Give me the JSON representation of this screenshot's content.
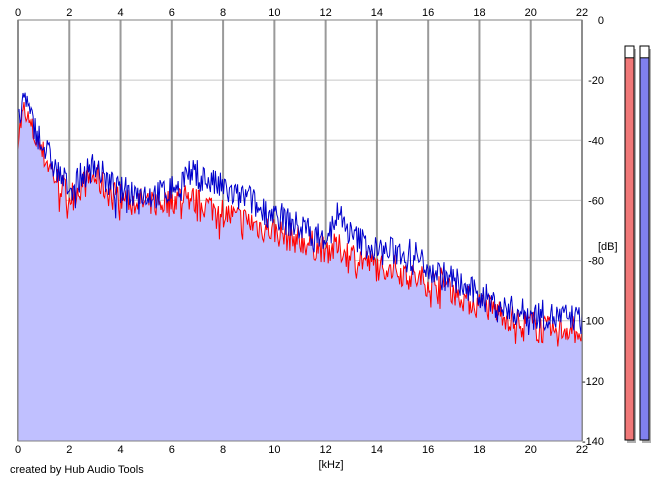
{
  "chart_data": {
    "type": "area",
    "x_ticks": [
      "0",
      "2",
      "4",
      "6",
      "8",
      "10",
      "12",
      "14",
      "16",
      "18",
      "20",
      "22"
    ],
    "y_ticks": [
      "0",
      "-20",
      "-40",
      "-60",
      "-80",
      "-100",
      "-120",
      "-140"
    ],
    "xlabel": "[kHz]",
    "ylabel": "[dB]",
    "xlim": [
      0,
      22
    ],
    "ylim": [
      -140,
      0
    ],
    "grid": true,
    "series": [
      {
        "color": "#ff0000",
        "x": [
          0,
          0.25,
          0.5,
          1,
          1.5,
          2,
          2.5,
          3,
          3.5,
          4,
          4.5,
          5,
          5.5,
          6,
          6.5,
          7,
          7.5,
          8,
          8.5,
          9,
          9.5,
          10,
          10.5,
          11,
          11.5,
          12,
          12.5,
          13,
          13.5,
          14,
          14.5,
          15,
          15.5,
          16,
          16.5,
          17,
          17.5,
          18,
          18.5,
          19,
          19.5,
          20,
          20.5,
          21,
          21.5,
          22
        ],
        "values": [
          -38,
          -30,
          -36,
          -45,
          -53,
          -59,
          -55,
          -52,
          -57,
          -59,
          -60,
          -61,
          -61,
          -60,
          -58,
          -61,
          -62,
          -64,
          -66,
          -67,
          -69,
          -70,
          -72,
          -73,
          -75,
          -76,
          -76,
          -78,
          -80,
          -82,
          -82,
          -84,
          -86,
          -87,
          -87,
          -90,
          -93,
          -95,
          -96,
          -98,
          -101,
          -101,
          -103,
          -104,
          -102,
          -104
        ]
      },
      {
        "color": "#0000cc",
        "x": [
          0,
          0.25,
          0.5,
          1,
          1.5,
          2,
          2.5,
          3,
          3.5,
          4,
          4.5,
          5,
          5.5,
          6,
          6.5,
          7,
          7.5,
          8,
          8.5,
          9,
          9.5,
          10,
          10.5,
          11,
          11.5,
          12,
          12.5,
          13,
          13.5,
          14,
          14.5,
          15,
          15.5,
          16,
          16.5,
          17,
          17.5,
          18,
          18.5,
          19,
          19.5,
          20,
          20.5,
          21,
          21.5,
          22
        ],
        "values": [
          -35,
          -25,
          -33,
          -42,
          -50,
          -56,
          -52,
          -48,
          -54,
          -57,
          -57,
          -58,
          -58,
          -56,
          -52,
          -51,
          -54,
          -56,
          -59,
          -59,
          -64,
          -64,
          -67,
          -69,
          -71,
          -72,
          -64,
          -72,
          -74,
          -77,
          -77,
          -77,
          -78,
          -82,
          -85,
          -86,
          -90,
          -91,
          -94,
          -96,
          -97,
          -98,
          -98,
          -99,
          -99,
          -100
        ]
      }
    ],
    "fill_color": "#c0c0ff",
    "level_meters": [
      {
        "channel_color": "#f07878",
        "level": 0.97
      },
      {
        "channel_color": "#8080f0",
        "level": 0.97
      }
    ]
  },
  "footer": {
    "credit": "created by Hub Audio Tools"
  }
}
